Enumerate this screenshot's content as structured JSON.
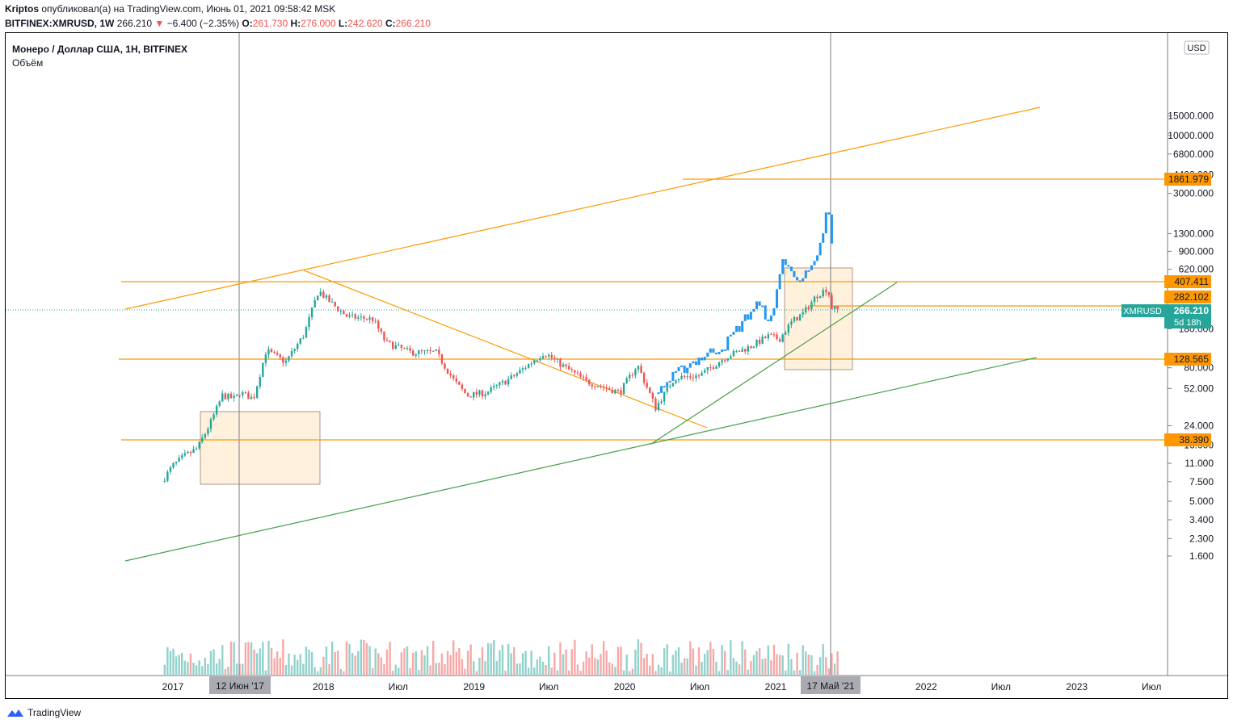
{
  "header": {
    "author": "Kriptos",
    "published_text": "опубликовал(а) на TradingView.com, Июнь 01, 2021 09:58:42 MSK",
    "symbol": "BITFINEX:XMRUSD, 1W",
    "last": "266.210",
    "change_arrow": "▼",
    "change": "−6.400 (−2.35%)",
    "o_label": "O:",
    "o_value": "261.730",
    "h_label": "H:",
    "h_value": "276.000",
    "l_label": "L:",
    "l_value": "242.620",
    "c_label": "C:",
    "c_value": "266.210"
  },
  "legend": {
    "title": "Монеро / Доллар США, 1Н, BITFINEX",
    "volume_label": "Объём"
  },
  "price_scale": {
    "currency": "USD",
    "ticks": [
      "15000.000",
      "10000.000",
      "6800.000",
      "4400.000",
      "3000.000",
      "1300.000",
      "900.000",
      "620.000",
      "180.000",
      "80.000",
      "52.000",
      "24.000",
      "16.000",
      "11.000",
      "7.500",
      "5.000",
      "3.400",
      "2.300",
      "1.600"
    ]
  },
  "time_scale": {
    "ticks": [
      "2017",
      "2018",
      "Июл",
      "2019",
      "Июл",
      "2020",
      "Июл",
      "2021",
      "2022",
      "Июл",
      "2023",
      "Июл"
    ],
    "crosshair_labels": [
      "12 Июн '17",
      "17 Май '21"
    ]
  },
  "level_labels": [
    "1861.979",
    "407.411",
    "282.102",
    "128.565",
    "38.390"
  ],
  "last_price_tag": {
    "symbol": "XMRUSD",
    "price": "266.210",
    "countdown": "5d 18h"
  },
  "colors": {
    "up": "#26a69a",
    "down": "#ef5350",
    "blue": "#2196f3",
    "orange": "#ff9800",
    "green": "#43a047",
    "bg": "#ffffff"
  },
  "footer": {
    "brand": "TradingView"
  },
  "chart_data": {
    "type": "candlestick",
    "symbol": "XMRUSD",
    "interval": "1W",
    "y_scale": "log",
    "y_unit": "USD",
    "levels": [
      1861.979,
      407.411,
      282.102,
      128.565,
      38.39
    ],
    "last_price": 266.21,
    "weekly_close_path": [
      [
        "2016-12-05",
        7.5
      ],
      [
        "2017-01-01",
        10.5
      ],
      [
        "2017-02-01",
        13
      ],
      [
        "2017-03-01",
        15
      ],
      [
        "2017-04-01",
        25
      ],
      [
        "2017-05-01",
        45
      ],
      [
        "2017-06-01",
        42
      ],
      [
        "2017-06-12",
        48
      ],
      [
        "2017-07-15",
        42
      ],
      [
        "2017-08-15",
        115
      ],
      [
        "2017-10-01",
        90
      ],
      [
        "2017-11-15",
        160
      ],
      [
        "2017-12-20",
        400
      ],
      [
        "2018-01-10",
        330
      ],
      [
        "2018-02-01",
        280
      ],
      [
        "2018-03-01",
        230
      ],
      [
        "2018-05-01",
        220
      ],
      [
        "2018-06-01",
        135
      ],
      [
        "2018-08-01",
        110
      ],
      [
        "2018-10-01",
        110
      ],
      [
        "2018-11-15",
        60
      ],
      [
        "2018-12-15",
        45
      ],
      [
        "2019-02-01",
        48
      ],
      [
        "2019-04-01",
        65
      ],
      [
        "2019-06-20",
        110
      ],
      [
        "2019-08-01",
        85
      ],
      [
        "2019-10-01",
        60
      ],
      [
        "2019-12-20",
        48
      ],
      [
        "2020-02-01",
        85
      ],
      [
        "2020-03-16",
        35
      ],
      [
        "2020-05-01",
        65
      ],
      [
        "2020-07-01",
        68
      ],
      [
        "2020-09-01",
        100
      ],
      [
        "2020-11-01",
        125
      ],
      [
        "2020-12-15",
        155
      ],
      [
        "2021-01-10",
        145
      ],
      [
        "2021-02-10",
        210
      ],
      [
        "2021-03-10",
        250
      ],
      [
        "2021-04-10",
        360
      ],
      [
        "2021-05-07",
        420
      ],
      [
        "2021-05-17",
        280
      ],
      [
        "2021-05-31",
        266.21
      ]
    ],
    "blue_series_path": [
      [
        "2020-03-16",
        48
      ],
      [
        "2020-06-01",
        85
      ],
      [
        "2020-09-01",
        130
      ],
      [
        "2020-11-15",
        300
      ],
      [
        "2020-12-25",
        210
      ],
      [
        "2021-01-15",
        800
      ],
      [
        "2021-02-05",
        580
      ],
      [
        "2021-03-10",
        520
      ],
      [
        "2021-04-10",
        700
      ],
      [
        "2021-04-25",
        1300
      ],
      [
        "2021-05-07",
        2350
      ],
      [
        "2021-05-17",
        1000
      ]
    ]
  }
}
